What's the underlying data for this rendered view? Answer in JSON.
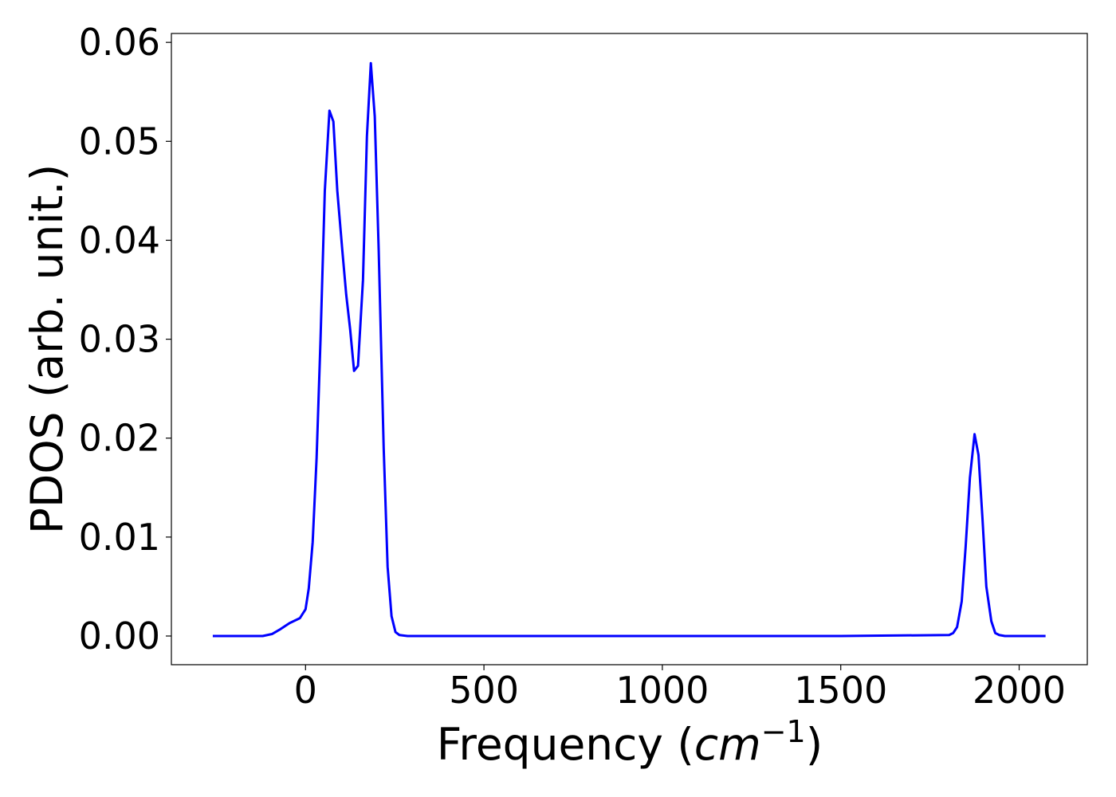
{
  "chart_data": {
    "type": "line",
    "xlabel": [
      "Frequency (",
      "cm",
      "−1",
      ")"
    ],
    "ylabel": "PDOS (arb. unit.)",
    "xlim": [
      -376,
      2191
    ],
    "ylim": [
      -0.0029,
      0.0609
    ],
    "xticks": [
      0,
      500,
      1000,
      1500,
      2000
    ],
    "yticks": [
      {
        "value": 0,
        "label": "0.00"
      },
      {
        "value": 0.01,
        "label": "0.01"
      },
      {
        "value": 0.02,
        "label": "0.02"
      },
      {
        "value": 0.03,
        "label": "0.03"
      },
      {
        "value": 0.04,
        "label": "0.04"
      },
      {
        "value": 0.05,
        "label": "0.05"
      },
      {
        "value": 0.06,
        "label": "0.06"
      }
    ],
    "grid": false,
    "x": [
      -260,
      -200,
      -150,
      -120,
      -94,
      -70,
      -45,
      -16,
      0,
      9,
      20,
      31,
      42,
      54,
      67,
      78,
      89,
      103,
      114,
      125,
      136,
      147,
      161,
      172,
      183,
      194,
      205,
      219,
      230,
      241,
      252,
      263,
      286,
      500,
      1000,
      1500,
      1804,
      1815,
      1826,
      1839,
      1850,
      1862,
      1875,
      1886,
      1897,
      1908,
      1922,
      1933,
      1944,
      1960,
      2074
    ],
    "series": [
      {
        "color": "#0000ff",
        "values": [
          0,
          0,
          0,
          0,
          0.0002,
          0.0007,
          0.0013,
          0.0018,
          0.0027,
          0.0048,
          0.0095,
          0.018,
          0.03,
          0.045,
          0.0531,
          0.052,
          0.045,
          0.039,
          0.0345,
          0.031,
          0.0268,
          0.0273,
          0.036,
          0.0505,
          0.0579,
          0.0525,
          0.039,
          0.019,
          0.007,
          0.002,
          0.0004,
          0.0001,
          0,
          0,
          0,
          0,
          0.0001,
          0.0003,
          0.0009,
          0.0035,
          0.009,
          0.016,
          0.0204,
          0.0183,
          0.012,
          0.005,
          0.0015,
          0.0003,
          0.0001,
          0,
          0
        ]
      }
    ]
  }
}
